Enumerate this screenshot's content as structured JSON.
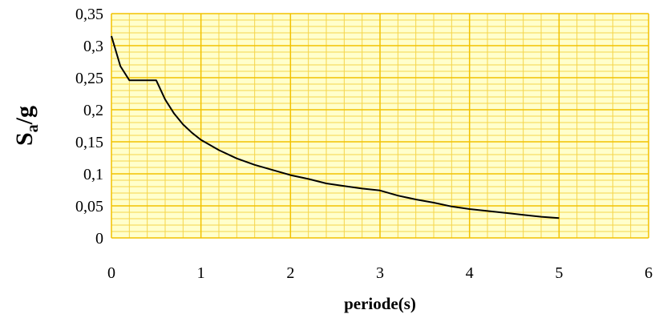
{
  "chart_data": {
    "type": "line",
    "xlabel": "periode(s)",
    "ylabel": "S",
    "ylabel_subscript": "a",
    "ylabel_suffix": "/g",
    "xlim": [
      0,
      6
    ],
    "ylim": [
      0,
      0.35
    ],
    "x_ticks": [
      0,
      1,
      2,
      3,
      4,
      5,
      6
    ],
    "x_tick_labels": [
      "0",
      "1",
      "2",
      "3",
      "4",
      "5",
      "6"
    ],
    "y_ticks": [
      0,
      0.05,
      0.1,
      0.15,
      0.2,
      0.25,
      0.3,
      0.35
    ],
    "y_tick_labels": [
      "0",
      "0,05",
      "0,1",
      "0,15",
      "0,2",
      "0,25",
      "0,3",
      "0,35"
    ],
    "grid": true,
    "x_minor_step": 0.2,
    "y_minor_step": 0.01,
    "colors": {
      "plot_background": "#ffffcc",
      "grid_major": "#f2c200",
      "grid_minor": "#f5d54a",
      "line": "#000000"
    },
    "series": [
      {
        "x": [
          0,
          0.1,
          0.2,
          0.3,
          0.4,
          0.5,
          0.6,
          0.7,
          0.8,
          0.9,
          1.0,
          1.2,
          1.4,
          1.6,
          1.8,
          2.0,
          2.2,
          2.4,
          2.6,
          2.8,
          3.0,
          3.2,
          3.4,
          3.6,
          3.8,
          4.0,
          4.2,
          4.4,
          4.6,
          4.8,
          5.0
        ],
        "values": [
          0.315,
          0.268,
          0.246,
          0.246,
          0.246,
          0.246,
          0.216,
          0.194,
          0.177,
          0.164,
          0.153,
          0.137,
          0.124,
          0.114,
          0.106,
          0.098,
          0.092,
          0.085,
          0.081,
          0.077,
          0.074,
          0.066,
          0.06,
          0.055,
          0.049,
          0.045,
          0.042,
          0.039,
          0.036,
          0.033,
          0.031
        ]
      }
    ]
  }
}
